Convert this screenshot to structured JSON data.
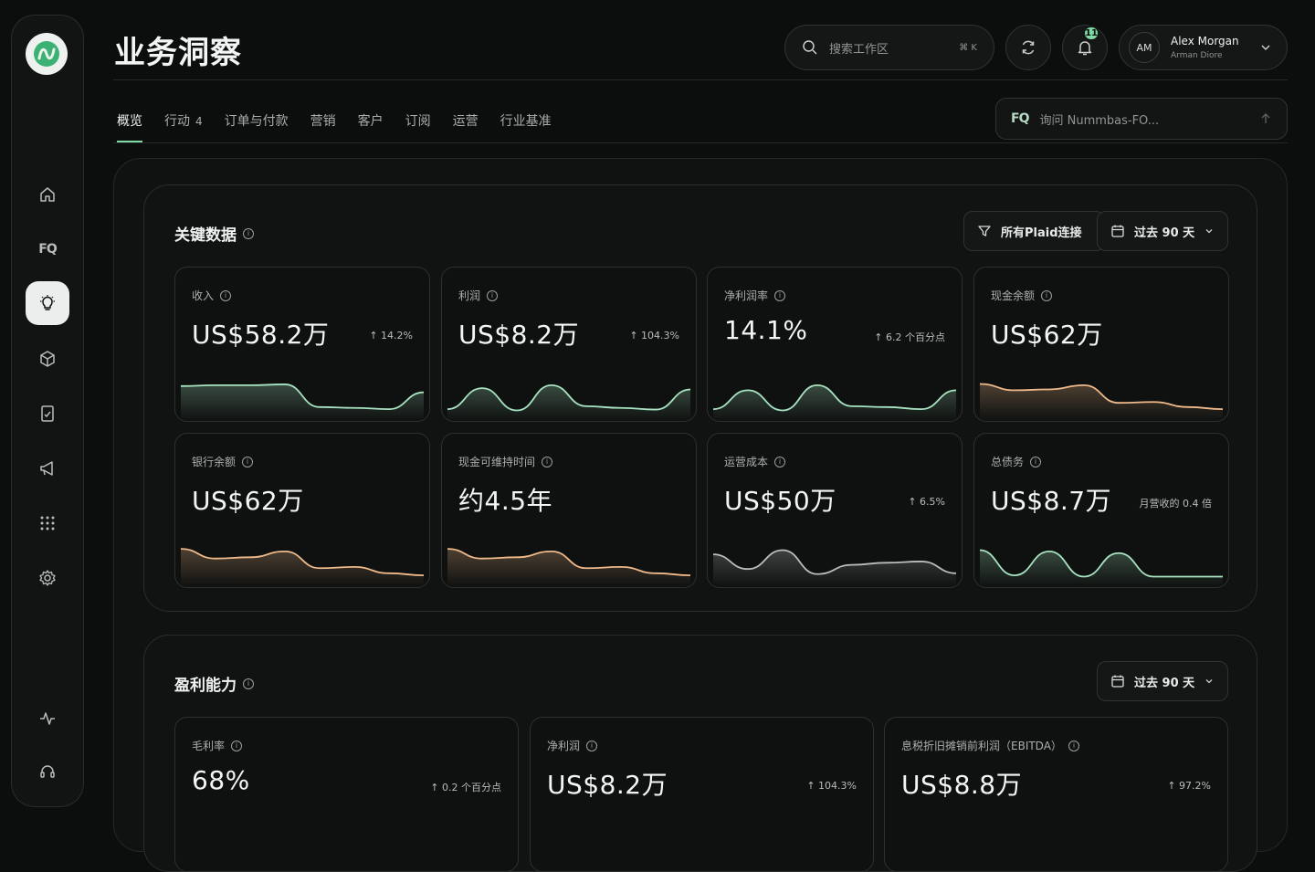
{
  "header": {
    "title": "业务洞察",
    "search_placeholder": "搜索工作区",
    "search_shortcut": "⌘ K",
    "notifications_count": "11",
    "user": {
      "initials": "AM",
      "name": "Alex Morgan",
      "subtitle": "Arman Diore"
    }
  },
  "tabs": [
    {
      "label": "概览",
      "count": ""
    },
    {
      "label": "行动",
      "count": "4"
    },
    {
      "label": "订单与付款",
      "count": ""
    },
    {
      "label": "营销",
      "count": ""
    },
    {
      "label": "客户",
      "count": ""
    },
    {
      "label": "订阅",
      "count": ""
    },
    {
      "label": "运营",
      "count": ""
    },
    {
      "label": "行业基准",
      "count": ""
    }
  ],
  "ask": {
    "badge": "FQ",
    "placeholder": "询问 Nummbas-FO..."
  },
  "sidebar": {
    "fq_label": "FQ"
  },
  "key_data": {
    "title": "关键数据",
    "filter_label": "所有Plaid连接",
    "period_label": "过去 90 天",
    "cards": [
      {
        "label": "收入",
        "value": "US$58.2万",
        "delta": "↑ 14.2%",
        "color": "#a7e3c0",
        "trend": [
          0.7,
          0.72,
          0.72,
          0.74,
          0.2,
          0.18,
          0.15,
          0.55
        ]
      },
      {
        "label": "利润",
        "value": "US$8.2万",
        "delta": "↑ 104.3%",
        "color": "#a7e3c0",
        "trend": [
          0.15,
          0.65,
          0.12,
          0.72,
          0.22,
          0.18,
          0.14,
          0.62
        ]
      },
      {
        "label": "净利润率",
        "value": "14.1%",
        "delta": "↑ 6.2 个百分点",
        "color": "#a7e3c0",
        "trend": [
          0.15,
          0.6,
          0.12,
          0.72,
          0.22,
          0.2,
          0.15,
          0.6
        ]
      },
      {
        "label": "现金余额",
        "value": "US$62万",
        "delta": "",
        "color": "#f0b98a",
        "trend": [
          0.75,
          0.6,
          0.62,
          0.72,
          0.3,
          0.32,
          0.2,
          0.15
        ]
      },
      {
        "label": "银行余额",
        "value": "US$62万",
        "delta": "",
        "color": "#f0b98a",
        "trend": [
          0.78,
          0.55,
          0.58,
          0.72,
          0.32,
          0.35,
          0.2,
          0.15
        ]
      },
      {
        "label": "现金可维持时间",
        "value": "约4.5年",
        "delta": "",
        "color": "#f0b98a",
        "trend": [
          0.78,
          0.55,
          0.58,
          0.72,
          0.32,
          0.35,
          0.2,
          0.15
        ]
      },
      {
        "label": "运营成本",
        "value": "US$50万",
        "delta": "↑ 6.5%",
        "color": "#b9bdbb",
        "trend": [
          0.65,
          0.3,
          0.75,
          0.18,
          0.4,
          0.45,
          0.48,
          0.2
        ]
      },
      {
        "label": "总债务",
        "value": "US$8.7万",
        "delta": "月营收的 0.4 倍",
        "color": "#a7e3c0",
        "trend": [
          0.75,
          0.15,
          0.72,
          0.12,
          0.68,
          0.12,
          0.12,
          0.12
        ]
      }
    ]
  },
  "profitability": {
    "title": "盈利能力",
    "period_label": "过去 90 天",
    "cards": [
      {
        "label": "毛利率",
        "value": "68%",
        "delta": "↑ 0.2 个百分点"
      },
      {
        "label": "净利润",
        "value": "US$8.2万",
        "delta": "↑ 104.3%"
      },
      {
        "label": "息税折旧摊销前利润（EBITDA）",
        "value": "US$8.8万",
        "delta": "↑ 97.2%"
      }
    ]
  }
}
